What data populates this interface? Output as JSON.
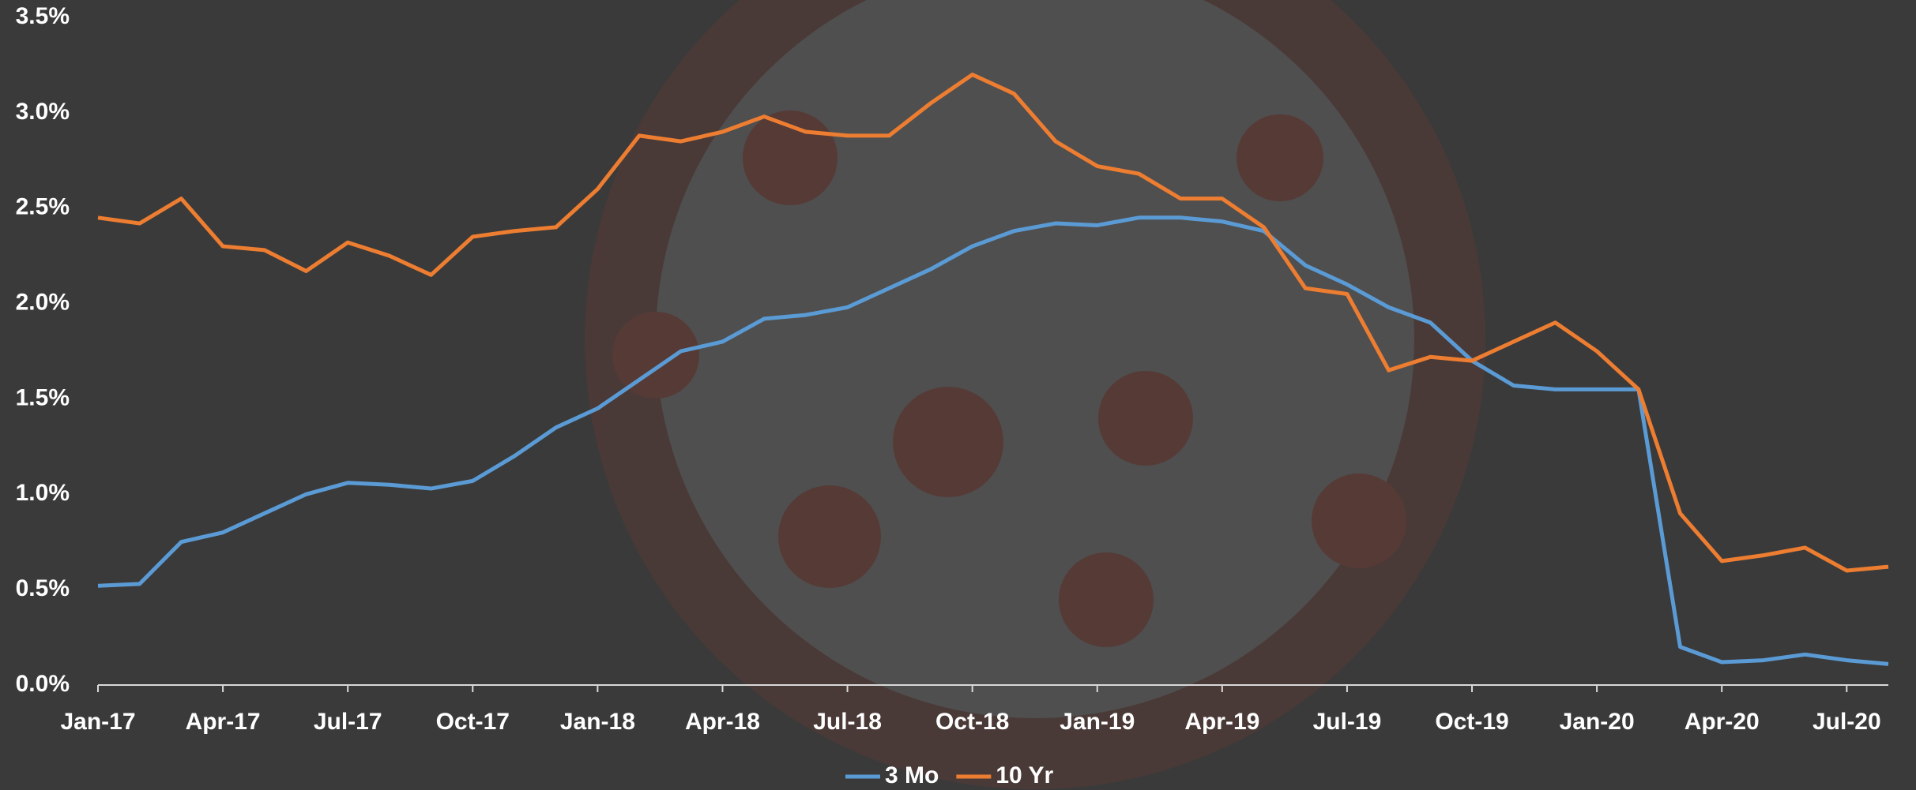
{
  "chart_data": {
    "type": "line",
    "x": [
      "2017-01",
      "2017-02",
      "2017-03",
      "2017-04",
      "2017-05",
      "2017-06",
      "2017-07",
      "2017-08",
      "2017-09",
      "2017-10",
      "2017-11",
      "2017-12",
      "2018-01",
      "2018-02",
      "2018-03",
      "2018-04",
      "2018-05",
      "2018-06",
      "2018-07",
      "2018-08",
      "2018-09",
      "2018-10",
      "2018-11",
      "2018-12",
      "2019-01",
      "2019-02",
      "2019-03",
      "2019-04",
      "2019-05",
      "2019-06",
      "2019-07",
      "2019-08",
      "2019-09",
      "2019-10",
      "2019-11",
      "2019-12",
      "2020-01",
      "2020-02",
      "2020-03",
      "2020-04",
      "2020-05",
      "2020-06",
      "2020-07",
      "2020-08"
    ],
    "series": [
      {
        "name": "3 Mo",
        "color": "#5b9bd5",
        "values": [
          0.52,
          0.53,
          0.75,
          0.8,
          0.9,
          1.0,
          1.06,
          1.05,
          1.03,
          1.07,
          1.2,
          1.35,
          1.45,
          1.6,
          1.75,
          1.8,
          1.92,
          1.94,
          1.98,
          2.08,
          2.18,
          2.3,
          2.38,
          2.42,
          2.41,
          2.45,
          2.45,
          2.43,
          2.38,
          2.2,
          2.1,
          1.98,
          1.9,
          1.7,
          1.57,
          1.55,
          1.55,
          1.55,
          0.2,
          0.12,
          0.13,
          0.16,
          0.13,
          0.11
        ]
      },
      {
        "name": "10 Yr",
        "color": "#ed7d31",
        "values": [
          2.45,
          2.42,
          2.55,
          2.3,
          2.28,
          2.17,
          2.32,
          2.25,
          2.15,
          2.35,
          2.38,
          2.4,
          2.6,
          2.88,
          2.85,
          2.9,
          2.98,
          2.9,
          2.88,
          2.88,
          3.05,
          3.2,
          3.1,
          2.85,
          2.72,
          2.68,
          2.55,
          2.55,
          2.4,
          2.08,
          2.05,
          1.65,
          1.72,
          1.7,
          1.8,
          1.9,
          1.75,
          1.55,
          0.9,
          0.65,
          0.68,
          0.72,
          0.6,
          0.62
        ]
      }
    ],
    "xlim": [
      "2017-01",
      "2020-08"
    ],
    "xticks": [
      {
        "value": "2017-01",
        "label": "Jan-17"
      },
      {
        "value": "2017-04",
        "label": "Apr-17"
      },
      {
        "value": "2017-07",
        "label": "Jul-17"
      },
      {
        "value": "2017-10",
        "label": "Oct-17"
      },
      {
        "value": "2018-01",
        "label": "Jan-18"
      },
      {
        "value": "2018-04",
        "label": "Apr-18"
      },
      {
        "value": "2018-07",
        "label": "Jul-18"
      },
      {
        "value": "2018-10",
        "label": "Oct-18"
      },
      {
        "value": "2019-01",
        "label": "Jan-19"
      },
      {
        "value": "2019-04",
        "label": "Apr-19"
      },
      {
        "value": "2019-07",
        "label": "Jul-19"
      },
      {
        "value": "2019-10",
        "label": "Oct-19"
      },
      {
        "value": "2020-01",
        "label": "Jan-20"
      },
      {
        "value": "2020-04",
        "label": "Apr-20"
      },
      {
        "value": "2020-07",
        "label": "Jul-20"
      }
    ],
    "ylim": [
      0,
      3.5
    ],
    "yticks": [
      {
        "value": 0,
        "label": "0.0%"
      },
      {
        "value": 0.5,
        "label": "0.5%"
      },
      {
        "value": 1,
        "label": "1.0%"
      },
      {
        "value": 1.5,
        "label": "1.5%"
      },
      {
        "value": 2,
        "label": "2.0%"
      },
      {
        "value": 2.5,
        "label": "2.5%"
      },
      {
        "value": 3,
        "label": "3.0%"
      },
      {
        "value": 3.5,
        "label": "3.5%"
      }
    ],
    "legend": "bottom"
  }
}
